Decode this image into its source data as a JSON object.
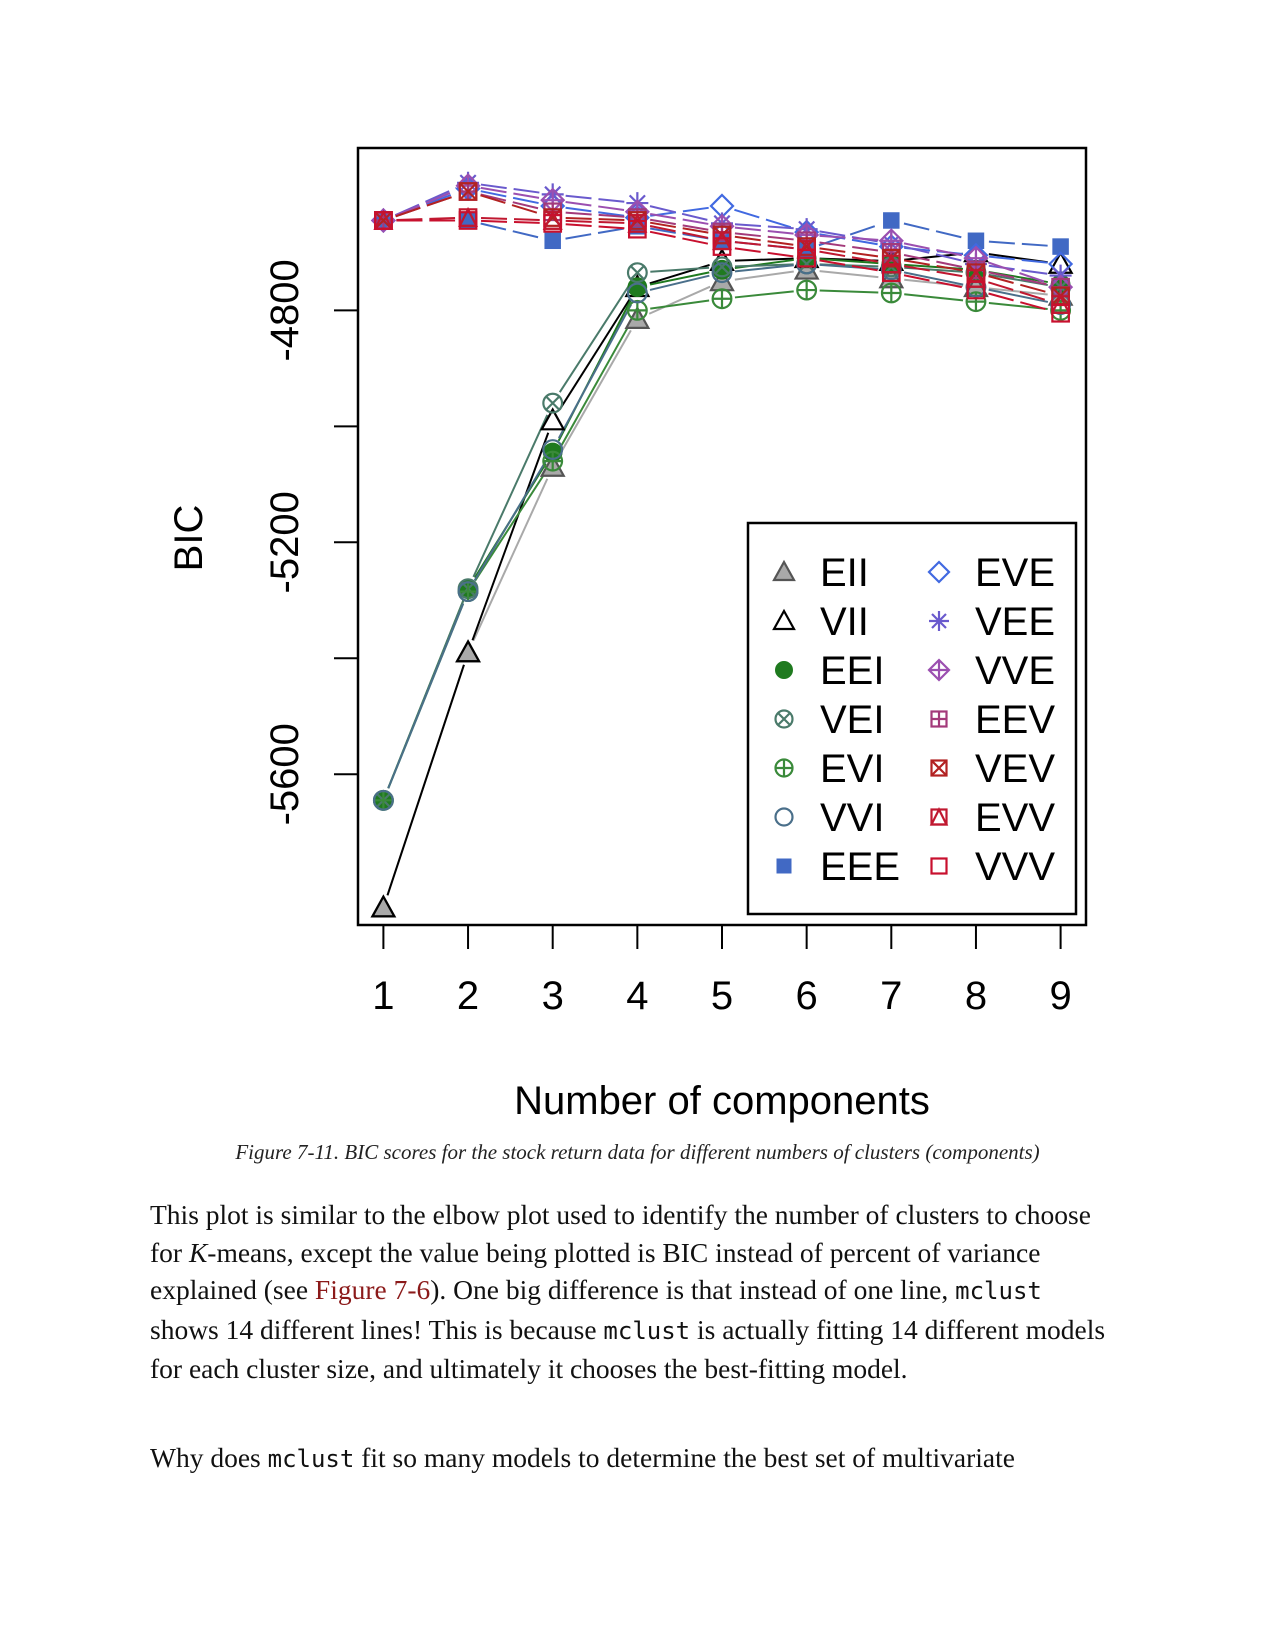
{
  "chart_data": {
    "type": "line",
    "xlabel": "Number of components",
    "ylabel": "BIC",
    "x": [
      1,
      2,
      3,
      4,
      5,
      6,
      7,
      8,
      9
    ],
    "x_ticks": [
      "1",
      "2",
      "3",
      "4",
      "5",
      "6",
      "7",
      "8",
      "9"
    ],
    "y_ticks": [
      "-5600",
      "-5200",
      "-4800"
    ],
    "xlim": [
      0.7,
      9.3
    ],
    "ylim": [
      -5860,
      -4520
    ],
    "legend_position": "bottom-right",
    "series": [
      {
        "name": "EII",
        "color": "#a9a9a9",
        "marker": "triangle-filled",
        "values": [
          -5830,
          -5390,
          -5070,
          -4815,
          -4750,
          -4730,
          -4745,
          -4760,
          -4775
        ]
      },
      {
        "name": "VII",
        "color": "#000000",
        "marker": "triangle-open",
        "values": [
          -5830,
          -5390,
          -4990,
          -4760,
          -4715,
          -4710,
          -4715,
          -4700,
          -4720
        ]
      },
      {
        "name": "EEI",
        "color": "#1f7a1f",
        "marker": "circle-filled",
        "values": [
          -5645,
          -5280,
          -5045,
          -4760,
          -4730,
          -4710,
          -4720,
          -4730,
          -4755
        ]
      },
      {
        "name": "VEI",
        "color": "#4a7a6a",
        "marker": "circle-cross",
        "values": [
          -5645,
          -5280,
          -4960,
          -4735,
          -4725,
          -4720,
          -4725,
          -4735,
          -4760
        ]
      },
      {
        "name": "EVI",
        "color": "#3a8a3a",
        "marker": "circle-plus",
        "values": [
          -5645,
          -5285,
          -5060,
          -4800,
          -4780,
          -4765,
          -4770,
          -4785,
          -4800
        ]
      },
      {
        "name": "VVI",
        "color": "#4a6f8a",
        "marker": "circle-open",
        "values": [
          -5645,
          -5285,
          -5040,
          -4770,
          -4735,
          -4720,
          -4730,
          -4760,
          -4790
        ]
      },
      {
        "name": "EEE",
        "color": "#4169c4",
        "marker": "square-filled",
        "values": [
          -4645,
          -4645,
          -4680,
          -4655,
          -4680,
          -4695,
          -4645,
          -4680,
          -4690
        ]
      },
      {
        "name": "EVE",
        "color": "#4169e1",
        "marker": "diamond-open",
        "values": [
          -4645,
          -4590,
          -4620,
          -4640,
          -4620,
          -4665,
          -4690,
          -4705,
          -4720
        ]
      },
      {
        "name": "VEE",
        "color": "#6a5acd",
        "marker": "asterisk",
        "values": [
          -4645,
          -4580,
          -4600,
          -4615,
          -4650,
          -4660,
          -4685,
          -4720,
          -4740
        ]
      },
      {
        "name": "VVE",
        "color": "#9b4fb0",
        "marker": "diamond-plus",
        "values": [
          -4645,
          -4585,
          -4610,
          -4630,
          -4655,
          -4670,
          -4680,
          -4710,
          -4760
        ]
      },
      {
        "name": "EEV",
        "color": "#a33a7a",
        "marker": "square-plus",
        "values": [
          -4645,
          -4595,
          -4630,
          -4640,
          -4665,
          -4680,
          -4700,
          -4730,
          -4760
        ]
      },
      {
        "name": "VEV",
        "color": "#b22222",
        "marker": "square-cross",
        "values": [
          -4645,
          -4595,
          -4640,
          -4645,
          -4670,
          -4690,
          -4710,
          -4735,
          -4775
        ]
      },
      {
        "name": "EVV",
        "color": "#c01830",
        "marker": "square-triangle",
        "values": [
          -4645,
          -4640,
          -4645,
          -4650,
          -4680,
          -4695,
          -4720,
          -4745,
          -4790
        ]
      },
      {
        "name": "VVV",
        "color": "#c8102e",
        "marker": "square-open",
        "values": [
          -4645,
          -4645,
          -4650,
          -4660,
          -4690,
          -4710,
          -4735,
          -4765,
          -4805
        ]
      }
    ]
  },
  "caption": "Figure 7-11. BIC scores for the stock return data for different numbers of clusters (components)",
  "paragraph1": {
    "t1": "This plot is similar to the elbow plot used to identify the number of clusters to choose for ",
    "k": "K",
    "t2": "-means, except the value being plotted is BIC instead of percent of variance explained (see ",
    "xref": "Figure 7-6",
    "t3": "). One big difference is that instead of one line, ",
    "code1": "mclust",
    "t4": " shows 14 different lines! This is because ",
    "code2": "mclust",
    "t5": " is actually fitting 14 different models for each cluster size, and ultimately it chooses the best-fitting model."
  },
  "paragraph2": {
    "t1": "Why does ",
    "code1": "mclust",
    "t2": " fit so many models to determine the best set of multivariate"
  }
}
